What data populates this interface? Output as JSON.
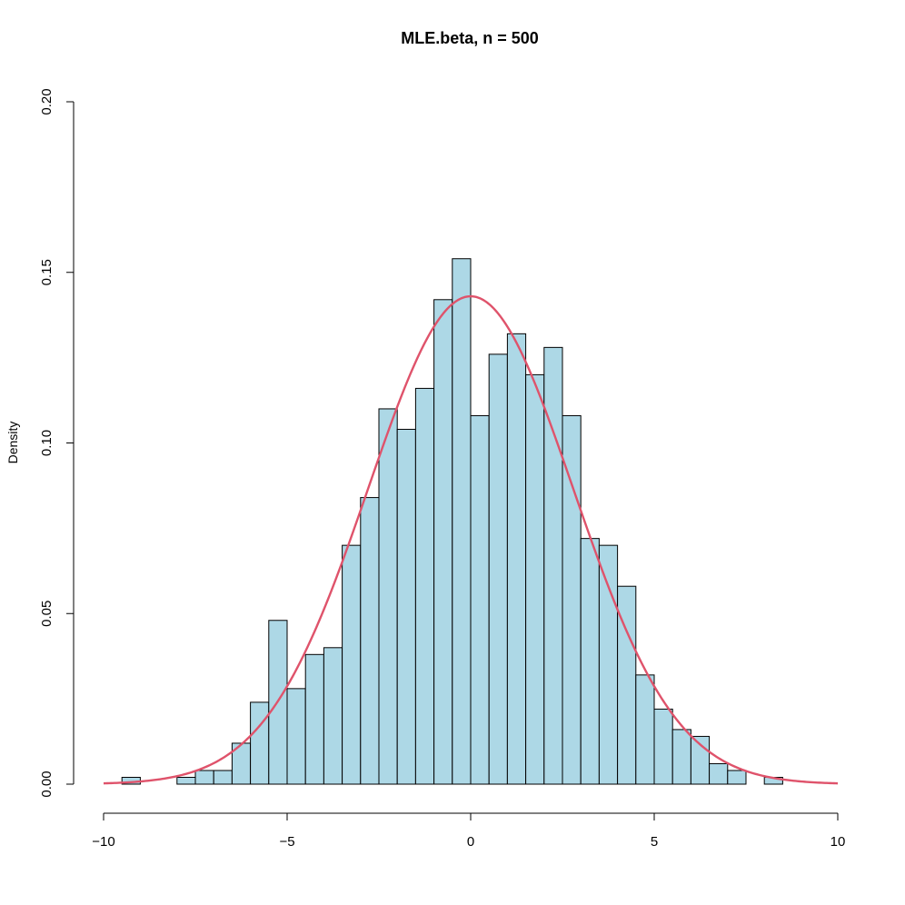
{
  "chart_data": {
    "type": "bar",
    "title": "MLE.beta, n = 500",
    "xlabel": "",
    "ylabel": "Density",
    "xlim": [
      -10,
      10
    ],
    "ylim": [
      0,
      0.2
    ],
    "x_ticks": [
      -10,
      -5,
      0,
      5,
      10
    ],
    "x_tick_labels": [
      "−10",
      "−5",
      "0",
      "5",
      "10"
    ],
    "y_ticks": [
      0,
      0.05,
      0.1,
      0.15,
      0.2
    ],
    "y_tick_labels": [
      "0.00",
      "0.05",
      "0.10",
      "0.15",
      "0.20"
    ],
    "grid": false,
    "bin_width": 0.5,
    "bins": [
      {
        "x0": -9.5,
        "x1": -9.0,
        "density": 0.002
      },
      {
        "x0": -9.0,
        "x1": -8.5,
        "density": 0.0
      },
      {
        "x0": -8.5,
        "x1": -8.0,
        "density": 0.0
      },
      {
        "x0": -8.0,
        "x1": -7.5,
        "density": 0.002
      },
      {
        "x0": -7.5,
        "x1": -7.0,
        "density": 0.004
      },
      {
        "x0": -7.0,
        "x1": -6.5,
        "density": 0.004
      },
      {
        "x0": -6.5,
        "x1": -6.0,
        "density": 0.012
      },
      {
        "x0": -6.0,
        "x1": -5.5,
        "density": 0.024
      },
      {
        "x0": -5.5,
        "x1": -5.0,
        "density": 0.048
      },
      {
        "x0": -5.0,
        "x1": -4.5,
        "density": 0.028
      },
      {
        "x0": -4.5,
        "x1": -4.0,
        "density": 0.038
      },
      {
        "x0": -4.0,
        "x1": -3.5,
        "density": 0.04
      },
      {
        "x0": -3.5,
        "x1": -3.0,
        "density": 0.07
      },
      {
        "x0": -3.0,
        "x1": -2.5,
        "density": 0.084
      },
      {
        "x0": -2.5,
        "x1": -2.0,
        "density": 0.11
      },
      {
        "x0": -2.0,
        "x1": -1.5,
        "density": 0.104
      },
      {
        "x0": -1.5,
        "x1": -1.0,
        "density": 0.116
      },
      {
        "x0": -1.0,
        "x1": -0.5,
        "density": 0.142
      },
      {
        "x0": -0.5,
        "x1": 0.0,
        "density": 0.154
      },
      {
        "x0": 0.0,
        "x1": 0.5,
        "density": 0.108
      },
      {
        "x0": 0.5,
        "x1": 1.0,
        "density": 0.126
      },
      {
        "x0": 1.0,
        "x1": 1.5,
        "density": 0.132
      },
      {
        "x0": 1.5,
        "x1": 2.0,
        "density": 0.12
      },
      {
        "x0": 2.0,
        "x1": 2.5,
        "density": 0.128
      },
      {
        "x0": 2.5,
        "x1": 3.0,
        "density": 0.108
      },
      {
        "x0": 3.0,
        "x1": 3.5,
        "density": 0.072
      },
      {
        "x0": 3.5,
        "x1": 4.0,
        "density": 0.07
      },
      {
        "x0": 4.0,
        "x1": 4.5,
        "density": 0.058
      },
      {
        "x0": 4.5,
        "x1": 5.0,
        "density": 0.032
      },
      {
        "x0": 5.0,
        "x1": 5.5,
        "density": 0.022
      },
      {
        "x0": 5.5,
        "x1": 6.0,
        "density": 0.016
      },
      {
        "x0": 6.0,
        "x1": 6.5,
        "density": 0.014
      },
      {
        "x0": 6.5,
        "x1": 7.0,
        "density": 0.006
      },
      {
        "x0": 7.0,
        "x1": 7.5,
        "density": 0.004
      },
      {
        "x0": 7.5,
        "x1": 8.0,
        "density": 0.0
      },
      {
        "x0": 8.0,
        "x1": 8.5,
        "density": 0.002
      }
    ],
    "overlay_curve": {
      "type": "line",
      "distribution": "normal",
      "mean": 0,
      "sd": 2.79,
      "x_range": [
        -10,
        10
      ],
      "color": "#df536b"
    },
    "bar_fill": "#add8e6",
    "bar_stroke": "#000000"
  }
}
